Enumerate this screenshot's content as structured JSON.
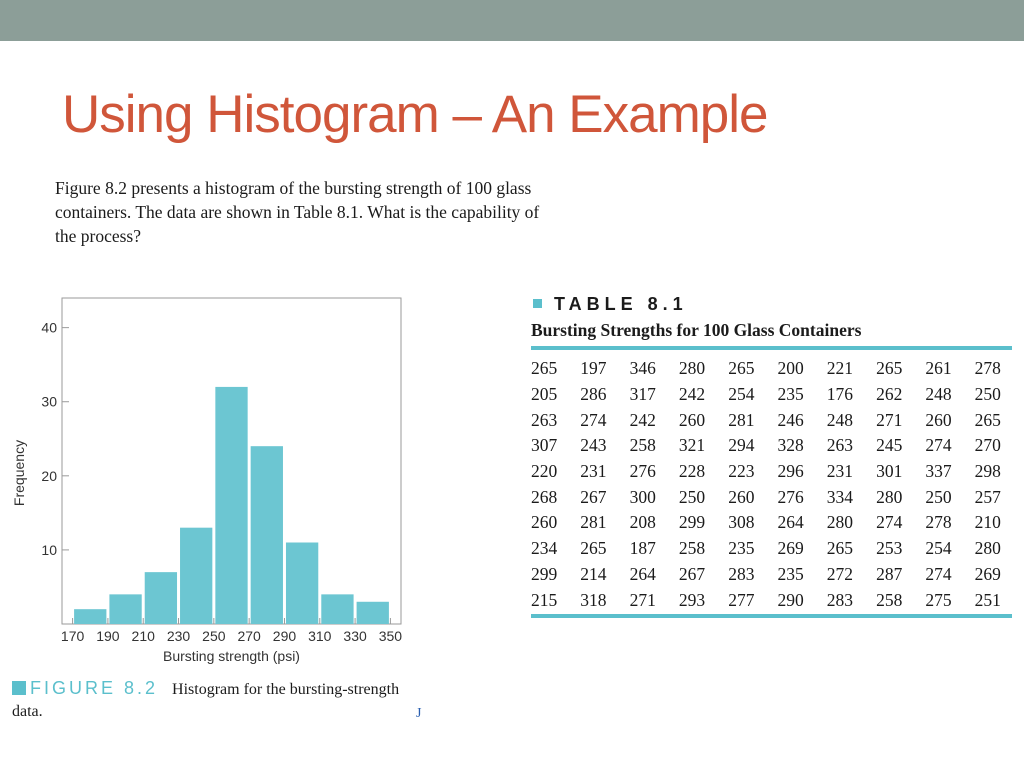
{
  "colors": {
    "top_band": "#8c9e98",
    "title": "#d0563a",
    "accent": "#5bbfcc",
    "bar_fill": "#6cc6d2",
    "stray_mark": "#2a5fb0"
  },
  "slide": {
    "title": "Using Histogram – An Example",
    "intro": "Figure 8.2 presents a histogram of the bursting strength of 100 glass containers. The data are shown in Table 8.1. What is the capability of the process?"
  },
  "figure": {
    "label": "FIGURE 8.2",
    "caption": "Histogram for the bursting-strength data.",
    "stray_mark": "J"
  },
  "chart_data": {
    "type": "bar",
    "title": "",
    "xlabel": "Bursting strength (psi)",
    "ylabel": "Frequency",
    "bin_edges": [
      170,
      190,
      210,
      230,
      250,
      270,
      290,
      310,
      330,
      350
    ],
    "values": [
      2,
      4,
      7,
      13,
      32,
      24,
      11,
      4,
      3
    ],
    "xticks": [
      170,
      190,
      210,
      230,
      250,
      270,
      290,
      310,
      330,
      350
    ],
    "yticks": [
      10,
      20,
      30,
      40
    ],
    "xlim": [
      164,
      356
    ],
    "ylim": [
      0,
      44
    ],
    "grid": false,
    "legend": "none"
  },
  "table": {
    "label": "TABLE 8.1",
    "title": "Bursting Strengths for 100 Glass Containers",
    "rows": [
      [
        265,
        197,
        346,
        280,
        265,
        200,
        221,
        265,
        261,
        278
      ],
      [
        205,
        286,
        317,
        242,
        254,
        235,
        176,
        262,
        248,
        250
      ],
      [
        263,
        274,
        242,
        260,
        281,
        246,
        248,
        271,
        260,
        265
      ],
      [
        307,
        243,
        258,
        321,
        294,
        328,
        263,
        245,
        274,
        270
      ],
      [
        220,
        231,
        276,
        228,
        223,
        296,
        231,
        301,
        337,
        298
      ],
      [
        268,
        267,
        300,
        250,
        260,
        276,
        334,
        280,
        250,
        257
      ],
      [
        260,
        281,
        208,
        299,
        308,
        264,
        280,
        274,
        278,
        210
      ],
      [
        234,
        265,
        187,
        258,
        235,
        269,
        265,
        253,
        254,
        280
      ],
      [
        299,
        214,
        264,
        267,
        283,
        235,
        272,
        287,
        274,
        269
      ],
      [
        215,
        318,
        271,
        293,
        277,
        290,
        283,
        258,
        275,
        251
      ]
    ]
  }
}
